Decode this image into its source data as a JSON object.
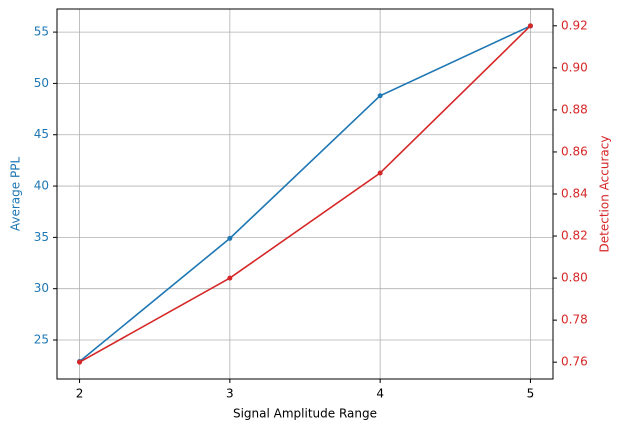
{
  "chart_data": {
    "type": "line",
    "x": [
      2,
      3,
      4,
      5
    ],
    "xlabel": "Signal Amplitude Range",
    "ylabel": "Average PPL",
    "y2label": "Detection Accuracy",
    "xlim": [
      1.85,
      5.15
    ],
    "xticks": [
      2,
      3,
      4,
      5
    ],
    "ylim": [
      21.2,
      57.25
    ],
    "yticks": [
      25,
      30,
      35,
      40,
      45,
      50,
      55
    ],
    "y2lim": [
      0.752,
      0.928
    ],
    "y2ticks": [
      0.76,
      0.78,
      {
        "value": 0.8,
        "label": "0.80"
      },
      0.82,
      0.84,
      0.86,
      0.88,
      {
        "value": 0.9,
        "label": "0.90"
      },
      0.92
    ],
    "grid": true,
    "series": [
      {
        "name": "Average PPL",
        "color": "#1f77b4",
        "values": [
          22.9,
          34.9,
          48.8,
          55.6
        ]
      },
      {
        "name": "Detection Accuracy",
        "color": "#d62728",
        "axis": "y2",
        "values": [
          0.76,
          0.8,
          0.85,
          0.92
        ]
      }
    ]
  }
}
